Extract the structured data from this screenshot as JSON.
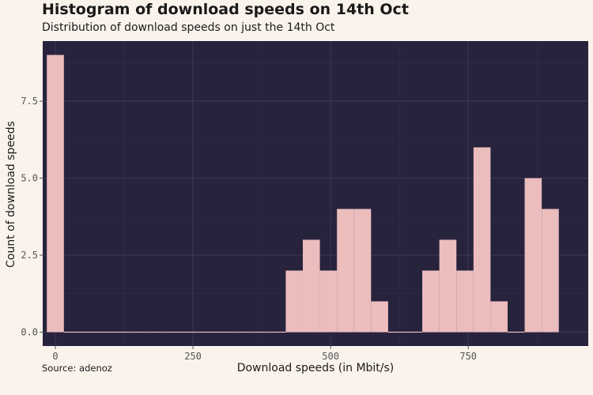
{
  "chart_data": {
    "type": "bar",
    "title": "Histogram of download speeds on 14th Oct",
    "subtitle": "Distribution of download speeds on just the 14th Oct",
    "caption": "Source: adenoz",
    "xlabel": "Download speeds (in Mbit/s)",
    "ylabel": "Count of download speeds",
    "xlim": [
      -23,
      968
    ],
    "ylim": [
      -0.45,
      9.45
    ],
    "bin_width": 31,
    "x": [
      0,
      31,
      62,
      93,
      124,
      155,
      186,
      217,
      248,
      279,
      310,
      341,
      372,
      403,
      434,
      465,
      496,
      527,
      558,
      589,
      620,
      651,
      682,
      713,
      744,
      775,
      806,
      837,
      868,
      899
    ],
    "values": [
      9,
      0,
      0,
      0,
      0,
      0,
      0,
      0,
      0,
      0,
      0,
      0,
      0,
      0,
      2,
      3,
      2,
      4,
      4,
      1,
      0,
      0,
      2,
      3,
      2,
      6,
      1,
      0,
      5,
      4
    ],
    "x_ticks": [
      0,
      250,
      500,
      750
    ],
    "x_tick_labels": [
      "0",
      "250",
      "500",
      "750"
    ],
    "y_ticks": [
      0,
      2.5,
      5,
      7.5
    ],
    "y_tick_labels": [
      "0.0",
      "2.5",
      "5.0",
      "7.5"
    ],
    "grid": true,
    "colors": {
      "background": "#faf3ec",
      "panel": "#28233d",
      "grid_major": "#3c3755",
      "grid_minor": "#322d48",
      "bar": "#ebbdbd"
    }
  }
}
